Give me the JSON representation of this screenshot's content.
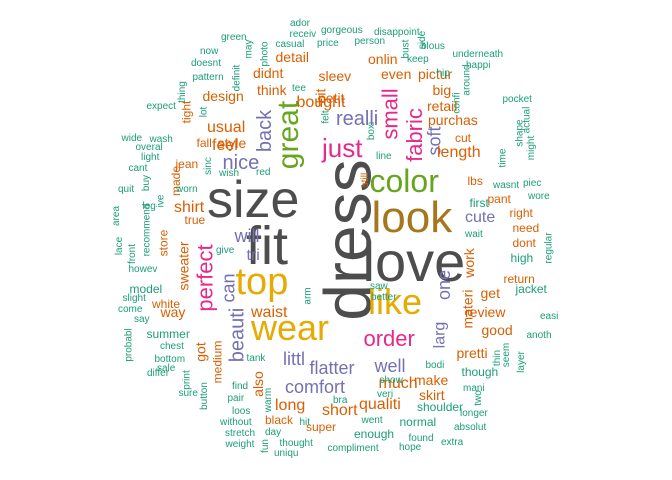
{
  "palette": {
    "gray": "#4d4d4d",
    "brown": "#a6761d",
    "green": "#66a61e",
    "magenta": "#e7298a",
    "purple": "#7570b3",
    "orange": "#d95f02",
    "gold": "#e6ab02",
    "teal": "#1b9e77"
  },
  "words": [
    {
      "text": "dress",
      "color": "gray",
      "rotate": -90
    },
    {
      "text": "love",
      "color": "gray",
      "rotate": 0
    },
    {
      "text": "size",
      "color": "gray",
      "rotate": 0
    },
    {
      "text": "fit",
      "color": "gray",
      "rotate": 0
    },
    {
      "text": "look",
      "color": "brown",
      "rotate": 0
    },
    {
      "text": "top",
      "color": "gold",
      "rotate": 0
    },
    {
      "text": "wear",
      "color": "gold",
      "rotate": 0
    },
    {
      "text": "color",
      "color": "green",
      "rotate": 0
    },
    {
      "text": "like",
      "color": "gold",
      "rotate": 0
    },
    {
      "text": "great",
      "color": "green",
      "rotate": -90
    },
    {
      "text": "just",
      "color": "magenta",
      "rotate": 0
    },
    {
      "text": "perfect",
      "color": "magenta",
      "rotate": -90
    },
    {
      "text": "fabric",
      "color": "magenta",
      "rotate": -90
    },
    {
      "text": "small",
      "color": "magenta",
      "rotate": -90
    },
    {
      "text": "order",
      "color": "magenta",
      "rotate": 0
    },
    {
      "text": "realli",
      "color": "purple",
      "rotate": 0
    },
    {
      "text": "nice",
      "color": "purple",
      "rotate": 0
    },
    {
      "text": "back",
      "color": "purple",
      "rotate": -90
    },
    {
      "text": "beauti",
      "color": "purple",
      "rotate": -90
    },
    {
      "text": "comfort",
      "color": "purple",
      "rotate": 0
    },
    {
      "text": "flatter",
      "color": "purple",
      "rotate": 0
    },
    {
      "text": "littl",
      "color": "purple",
      "rotate": 0
    },
    {
      "text": "well",
      "color": "purple",
      "rotate": 0
    },
    {
      "text": "will",
      "color": "purple",
      "rotate": 0
    },
    {
      "text": "tri",
      "color": "purple",
      "rotate": 0
    },
    {
      "text": "can",
      "color": "purple",
      "rotate": -90
    },
    {
      "text": "one",
      "color": "purple",
      "rotate": -90
    },
    {
      "text": "soft",
      "color": "purple",
      "rotate": -90
    },
    {
      "text": "larg",
      "color": "purple",
      "rotate": -90
    },
    {
      "text": "bought",
      "color": "orange",
      "rotate": 0
    },
    {
      "text": "waist",
      "color": "orange",
      "rotate": 0
    },
    {
      "text": "much",
      "color": "orange",
      "rotate": 0
    },
    {
      "text": "shirt",
      "color": "orange",
      "rotate": 0
    },
    {
      "text": "cute",
      "color": "purple",
      "rotate": 0
    },
    {
      "text": "sweater",
      "color": "orange",
      "rotate": -90
    },
    {
      "text": "work",
      "color": "orange",
      "rotate": -90
    },
    {
      "text": "materi",
      "color": "orange",
      "rotate": -90
    },
    {
      "text": "length",
      "color": "orange",
      "rotate": 0
    },
    {
      "text": "usual",
      "color": "orange",
      "rotate": 0
    },
    {
      "text": "feel",
      "color": "orange",
      "rotate": 0
    },
    {
      "text": "even",
      "color": "orange",
      "rotate": 0
    },
    {
      "text": "think",
      "color": "orange",
      "rotate": 0
    },
    {
      "text": "purchas",
      "color": "orange",
      "rotate": 0
    },
    {
      "text": "long",
      "color": "orange",
      "rotate": 0
    },
    {
      "text": "short",
      "color": "orange",
      "rotate": 0
    },
    {
      "text": "qualiti",
      "color": "orange",
      "rotate": 0
    },
    {
      "text": "make",
      "color": "orange",
      "rotate": 0
    },
    {
      "text": "skirt",
      "color": "orange",
      "rotate": 0
    },
    {
      "text": "pretti",
      "color": "orange",
      "rotate": 0
    },
    {
      "text": "review",
      "color": "orange",
      "rotate": 0
    },
    {
      "text": "good",
      "color": "orange",
      "rotate": 0
    },
    {
      "text": "get",
      "color": "orange",
      "rotate": 0
    },
    {
      "text": "also",
      "color": "orange",
      "rotate": -90
    },
    {
      "text": "way",
      "color": "orange",
      "rotate": 0
    },
    {
      "text": "got",
      "color": "orange",
      "rotate": -90
    },
    {
      "text": "medium",
      "color": "orange",
      "rotate": -90
    },
    {
      "text": "big",
      "color": "orange",
      "rotate": 0
    },
    {
      "text": "retail",
      "color": "orange",
      "rotate": 0
    },
    {
      "text": "style",
      "color": "orange",
      "rotate": 0
    },
    {
      "text": "petit",
      "color": "orange",
      "rotate": 0
    },
    {
      "text": "bit",
      "color": "orange",
      "rotate": -90
    },
    {
      "text": "design",
      "color": "orange",
      "rotate": 0
    },
    {
      "text": "sleev",
      "color": "orange",
      "rotate": 0
    },
    {
      "text": "onlin",
      "color": "orange",
      "rotate": 0
    },
    {
      "text": "didnt",
      "color": "orange",
      "rotate": 0
    },
    {
      "text": "pictur",
      "color": "orange",
      "rotate": 0
    },
    {
      "text": "detail",
      "color": "orange",
      "rotate": 0
    },
    {
      "text": "jean",
      "color": "orange",
      "rotate": 0
    },
    {
      "text": "made",
      "color": "orange",
      "rotate": -90
    },
    {
      "text": "fall",
      "color": "orange",
      "rotate": 0
    },
    {
      "text": "super",
      "color": "orange",
      "rotate": 0
    },
    {
      "text": "black",
      "color": "orange",
      "rotate": 0
    },
    {
      "text": "store",
      "color": "orange",
      "rotate": -90
    },
    {
      "text": "true",
      "color": "orange",
      "rotate": 0
    },
    {
      "text": "cut",
      "color": "orange",
      "rotate": 0
    },
    {
      "text": "lbs",
      "color": "orange",
      "rotate": 0
    },
    {
      "text": "pant",
      "color": "orange",
      "rotate": 0
    },
    {
      "text": "right",
      "color": "orange",
      "rotate": 0
    },
    {
      "text": "dont",
      "color": "orange",
      "rotate": 0
    },
    {
      "text": "need",
      "color": "orange",
      "rotate": 0
    },
    {
      "text": "return",
      "color": "orange",
      "rotate": 0
    },
    {
      "text": "white",
      "color": "orange",
      "rotate": 0
    },
    {
      "text": "tight",
      "color": "orange",
      "rotate": -90
    },
    {
      "text": "enough",
      "color": "teal",
      "rotate": 0
    },
    {
      "text": "shoulder",
      "color": "teal",
      "rotate": 0
    },
    {
      "text": "normal",
      "color": "teal",
      "rotate": 0
    },
    {
      "text": "summer",
      "color": "teal",
      "rotate": 0
    },
    {
      "text": "model",
      "color": "teal",
      "rotate": 0
    },
    {
      "text": "jacket",
      "color": "teal",
      "rotate": 0
    },
    {
      "text": "though",
      "color": "teal",
      "rotate": 0
    },
    {
      "text": "high",
      "color": "teal",
      "rotate": 0
    },
    {
      "text": "first",
      "color": "teal",
      "rotate": 0
    },
    {
      "text": "wait",
      "color": "teal",
      "rotate": 0
    },
    {
      "text": "recommend",
      "color": "teal",
      "rotate": -90
    },
    {
      "text": "howev",
      "color": "teal",
      "rotate": 0
    },
    {
      "text": "chest",
      "color": "teal",
      "rotate": 0
    },
    {
      "text": "bottom",
      "color": "teal",
      "rotate": 0
    },
    {
      "text": "sale",
      "color": "teal",
      "rotate": 0
    },
    {
      "text": "pair",
      "color": "teal",
      "rotate": 0
    },
    {
      "text": "find",
      "color": "teal",
      "rotate": 0
    },
    {
      "text": "loos",
      "color": "teal",
      "rotate": 0
    },
    {
      "text": "went",
      "color": "teal",
      "rotate": 0
    },
    {
      "text": "day",
      "color": "teal",
      "rotate": 0
    },
    {
      "text": "thought",
      "color": "teal",
      "rotate": 0
    },
    {
      "text": "compliment",
      "color": "teal",
      "rotate": 0
    },
    {
      "text": "hope",
      "color": "teal",
      "rotate": 0
    },
    {
      "text": "found",
      "color": "teal",
      "rotate": 0
    },
    {
      "text": "extra",
      "color": "teal",
      "rotate": 0
    },
    {
      "text": "absolut",
      "color": "teal",
      "rotate": 0
    },
    {
      "text": "longer",
      "color": "teal",
      "rotate": 0
    },
    {
      "text": "mani",
      "color": "teal",
      "rotate": 0
    },
    {
      "text": "bodi",
      "color": "teal",
      "rotate": 0
    },
    {
      "text": "show",
      "color": "teal",
      "rotate": 0
    },
    {
      "text": "bra",
      "color": "teal",
      "rotate": 0
    },
    {
      "text": "better",
      "color": "teal",
      "rotate": 0
    },
    {
      "text": "saw",
      "color": "teal",
      "rotate": 0
    },
    {
      "text": "arm",
      "color": "teal",
      "rotate": -90
    },
    {
      "text": "tank",
      "color": "teal",
      "rotate": 0
    },
    {
      "text": "give",
      "color": "teal",
      "rotate": 0
    },
    {
      "text": "wish",
      "color": "teal",
      "rotate": 0
    },
    {
      "text": "red",
      "color": "teal",
      "rotate": 0
    },
    {
      "text": "sinc",
      "color": "teal",
      "rotate": -90
    },
    {
      "text": "worn",
      "color": "teal",
      "rotate": 0
    },
    {
      "text": "leg",
      "color": "teal",
      "rotate": 0
    },
    {
      "text": "buy",
      "color": "teal",
      "rotate": -90
    },
    {
      "text": "ive",
      "color": "teal",
      "rotate": -90
    },
    {
      "text": "light",
      "color": "teal",
      "rotate": 0
    },
    {
      "text": "overal",
      "color": "teal",
      "rotate": 0
    },
    {
      "text": "wash",
      "color": "teal",
      "rotate": 0
    },
    {
      "text": "expect",
      "color": "teal",
      "rotate": 0
    },
    {
      "text": "lot",
      "color": "teal",
      "rotate": -90
    },
    {
      "text": "pattern",
      "color": "teal",
      "rotate": 0
    },
    {
      "text": "definit",
      "color": "teal",
      "rotate": -90
    },
    {
      "text": "doesnt",
      "color": "teal",
      "rotate": 0
    },
    {
      "text": "now",
      "color": "teal",
      "rotate": 0
    },
    {
      "text": "green",
      "color": "teal",
      "rotate": 0
    },
    {
      "text": "may",
      "color": "teal",
      "rotate": -90
    },
    {
      "text": "photo",
      "color": "teal",
      "rotate": -90
    },
    {
      "text": "ador",
      "color": "teal",
      "rotate": 0
    },
    {
      "text": "receiv",
      "color": "teal",
      "rotate": 0
    },
    {
      "text": "casual",
      "color": "teal",
      "rotate": 0
    },
    {
      "text": "price",
      "color": "teal",
      "rotate": 0
    },
    {
      "text": "gorgeous",
      "color": "teal",
      "rotate": 0
    },
    {
      "text": "person",
      "color": "teal",
      "rotate": 0
    },
    {
      "text": "disappoint",
      "color": "teal",
      "rotate": 0
    },
    {
      "text": "bust",
      "color": "teal",
      "rotate": -90
    },
    {
      "text": "blous",
      "color": "teal",
      "rotate": 0
    },
    {
      "text": "side",
      "color": "teal",
      "rotate": -90
    },
    {
      "text": "keep",
      "color": "teal",
      "rotate": 0
    },
    {
      "text": "underneath",
      "color": "teal",
      "rotate": 0
    },
    {
      "text": "happi",
      "color": "teal",
      "rotate": 0
    },
    {
      "text": "hip",
      "color": "teal",
      "rotate": 0
    },
    {
      "text": "around",
      "color": "teal",
      "rotate": -90
    },
    {
      "text": "confi",
      "color": "teal",
      "rotate": -90
    },
    {
      "text": "pocket",
      "color": "teal",
      "rotate": 0
    },
    {
      "text": "actual",
      "color": "teal",
      "rotate": -90
    },
    {
      "text": "might",
      "color": "teal",
      "rotate": -90
    },
    {
      "text": "shape",
      "color": "teal",
      "rotate": -90
    },
    {
      "text": "time",
      "color": "teal",
      "rotate": -90
    },
    {
      "text": "wasnt",
      "color": "teal",
      "rotate": 0
    },
    {
      "text": "piec",
      "color": "teal",
      "rotate": 0
    },
    {
      "text": "wore",
      "color": "teal",
      "rotate": 0
    },
    {
      "text": "regular",
      "color": "teal",
      "rotate": -90
    },
    {
      "text": "easi",
      "color": "teal",
      "rotate": 0
    },
    {
      "text": "anoth",
      "color": "teal",
      "rotate": 0
    },
    {
      "text": "layer",
      "color": "teal",
      "rotate": -90
    },
    {
      "text": "seem",
      "color": "teal",
      "rotate": -90
    },
    {
      "text": "thin",
      "color": "teal",
      "rotate": -90
    },
    {
      "text": "two",
      "color": "teal",
      "rotate": -90
    },
    {
      "text": "still",
      "color": "orange",
      "rotate": -90
    },
    {
      "text": "line",
      "color": "teal",
      "rotate": 0
    },
    {
      "text": "boxi",
      "color": "teal",
      "rotate": -90
    },
    {
      "text": "felt",
      "color": "teal",
      "rotate": -90
    },
    {
      "text": "tee",
      "color": "teal",
      "rotate": 0
    },
    {
      "text": "thing",
      "color": "teal",
      "rotate": -90
    },
    {
      "text": "cant",
      "color": "teal",
      "rotate": 0
    },
    {
      "text": "wide",
      "color": "teal",
      "rotate": 0
    },
    {
      "text": "quit",
      "color": "teal",
      "rotate": 0
    },
    {
      "text": "area",
      "color": "teal",
      "rotate": -90
    },
    {
      "text": "lace",
      "color": "teal",
      "rotate": -90
    },
    {
      "text": "front",
      "color": "teal",
      "rotate": -90
    },
    {
      "text": "slight",
      "color": "teal",
      "rotate": 0
    },
    {
      "text": "come",
      "color": "teal",
      "rotate": 0
    },
    {
      "text": "say",
      "color": "teal",
      "rotate": 0
    },
    {
      "text": "probabl",
      "color": "teal",
      "rotate": -90
    },
    {
      "text": "differ",
      "color": "teal",
      "rotate": 0
    },
    {
      "text": "sure",
      "color": "teal",
      "rotate": 0
    },
    {
      "text": "print",
      "color": "teal",
      "rotate": -90
    },
    {
      "text": "button",
      "color": "teal",
      "rotate": -90
    },
    {
      "text": "stretch",
      "color": "teal",
      "rotate": 0
    },
    {
      "text": "without",
      "color": "teal",
      "rotate": 0
    },
    {
      "text": "weight",
      "color": "teal",
      "rotate": 0
    },
    {
      "text": "fun",
      "color": "teal",
      "rotate": -90
    },
    {
      "text": "uniqu",
      "color": "teal",
      "rotate": 0
    },
    {
      "text": "hit",
      "color": "teal",
      "rotate": 0
    },
    {
      "text": "warm",
      "color": "teal",
      "rotate": -90
    },
    {
      "text": "veri",
      "color": "teal",
      "rotate": 0
    }
  ]
}
